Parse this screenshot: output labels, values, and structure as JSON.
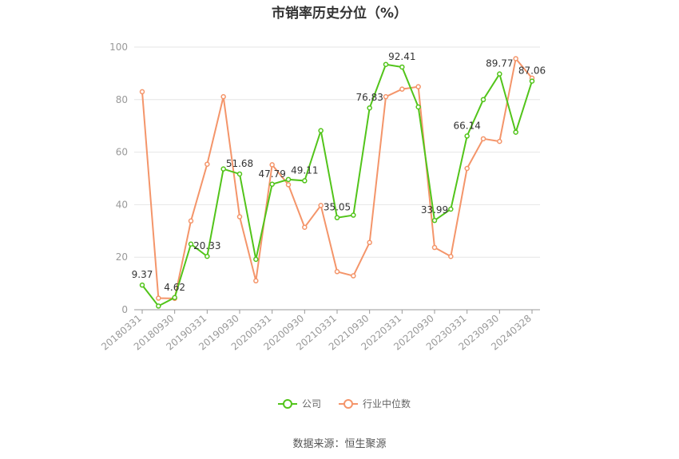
{
  "chart_data": {
    "type": "line",
    "title": "市销率历史分位（%）",
    "source": "数据来源：恒生聚源",
    "ylim": [
      0,
      100
    ],
    "yticks": [
      0,
      20,
      40,
      60,
      80,
      100
    ],
    "xtick_labels": [
      "20180331",
      "20180930",
      "20190331",
      "20190930",
      "20200331",
      "20200930",
      "20210331",
      "20210930",
      "20220331",
      "20220930",
      "20230331",
      "20230930",
      "20240328"
    ],
    "x": [
      "20180331",
      "20180630",
      "20180930",
      "20181231",
      "20190331",
      "20190630",
      "20190930",
      "20191231",
      "20200331",
      "20200630",
      "20200930",
      "20201231",
      "20210331",
      "20210630",
      "20210930",
      "20211231",
      "20220331",
      "20220630",
      "20220930",
      "20221231",
      "20230331",
      "20230630",
      "20230930",
      "20231231",
      "20240328"
    ],
    "series": [
      {
        "name": "公司",
        "color": "#52c41a",
        "values": [
          9.37,
          1.4,
          4.62,
          25.0,
          20.33,
          53.6,
          51.68,
          19.2,
          47.79,
          49.6,
          49.11,
          68.2,
          35.05,
          36.0,
          76.83,
          93.4,
          92.41,
          77.2,
          33.99,
          38.3,
          66.14,
          80.0,
          89.77,
          67.6,
          87.06
        ],
        "labels": {
          "0": "9.37",
          "2": "4.62",
          "4": "20.33",
          "6": "51.68",
          "8": "47.79",
          "10": "49.11",
          "12": "35.05",
          "14": "76.83",
          "16": "92.41",
          "18": "33.99",
          "20": "66.14",
          "22": "89.77",
          "24": "87.06"
        }
      },
      {
        "name": "行业中位数",
        "color": "#f4956a",
        "values": [
          83.0,
          4.4,
          4.3,
          33.8,
          55.4,
          81.1,
          35.4,
          11.0,
          55.2,
          47.6,
          31.4,
          39.7,
          14.5,
          12.9,
          25.6,
          81.1,
          84.0,
          84.9,
          23.7,
          20.3,
          53.8,
          65.1,
          64.1,
          95.6,
          88.2
        ]
      }
    ],
    "legend_position": "bottom-center",
    "grid": true
  }
}
